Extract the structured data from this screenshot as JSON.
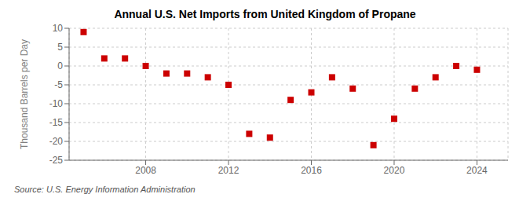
{
  "chart_data": {
    "type": "scatter",
    "title": "Annual U.S. Net Imports from United Kingdom of Propane",
    "ylabel": "Thousand Barrels per Day",
    "annotations": [
      "Source: U.S. Energy Information Administration"
    ],
    "x": [
      2005,
      2006,
      2007,
      2008,
      2009,
      2010,
      2011,
      2012,
      2013,
      2014,
      2015,
      2016,
      2017,
      2018,
      2019,
      2020,
      2021,
      2022,
      2023,
      2024
    ],
    "values": [
      9,
      2,
      2,
      0,
      -2,
      -2,
      -3,
      -5,
      -18,
      -19,
      -9,
      -7,
      -3,
      -6,
      -21,
      -14,
      -6,
      -3,
      0,
      -1
    ],
    "color": "#cc0000",
    "marker": "square",
    "xlim": [
      2004.3,
      2025.5
    ],
    "ylim": [
      -25,
      10
    ],
    "xticks": [
      2008,
      2012,
      2016,
      2020,
      2024
    ],
    "yticks": [
      -25,
      -20,
      -15,
      -10,
      -5,
      0,
      5,
      10
    ],
    "grid": true
  }
}
